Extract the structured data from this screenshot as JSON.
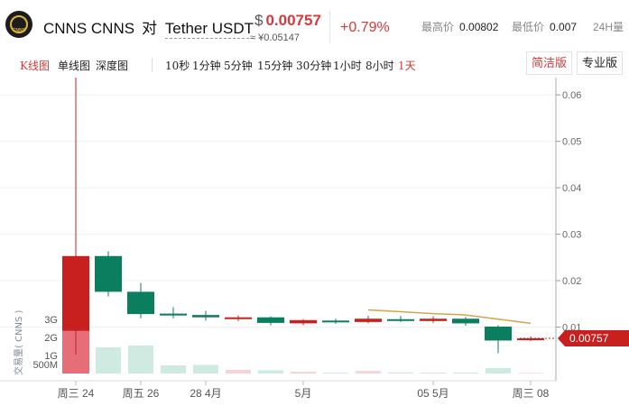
{
  "header": {
    "logo_text": "CNNS",
    "base_name": "CNNS CNNS",
    "dui": "对",
    "quote_name": "Tether USDT",
    "currency_symbol": "$",
    "price": "0.00757",
    "price_cny": "≈ ¥0.05147",
    "change": "+0.79%",
    "high_label": "最高价",
    "high_value": "0.00802",
    "low_label": "最低价",
    "low_value": "0.007",
    "period_label": "24H量",
    "up_color": "#d33a3a"
  },
  "tabs": {
    "chart_types": [
      "K线图",
      "单线图",
      "深度图"
    ],
    "intervals": [
      "10秒",
      "1分钟",
      "5分钟",
      "15分钟",
      "30分钟",
      "1小时",
      "8小时",
      "1天"
    ],
    "active_interval": "1天",
    "view_simple": "简洁版",
    "view_pro": "专业版"
  },
  "chart_data": {
    "type": "candlestick",
    "x_labels": [
      "周三 24",
      "周五 26",
      "28 4月",
      "5月",
      "05 5月",
      "周三 08"
    ],
    "y_ticks": [
      "0.06",
      "0.05",
      "0.04",
      "0.03",
      "0.02",
      "0.01"
    ],
    "ylim": [
      0.0,
      0.061
    ],
    "current_price": "0.00757",
    "volume_axis_label": "交易量( CNNS )",
    "volume_ticks": [
      "3G",
      "2G",
      "1G",
      "500M"
    ],
    "candles": [
      {
        "o": 0.0092,
        "h": 0.0525,
        "l": 0.0041,
        "c": 0.0253,
        "vol": 3.1
      },
      {
        "o": 0.0253,
        "h": 0.0263,
        "l": 0.0166,
        "c": 0.0176,
        "vol": 1.45
      },
      {
        "o": 0.0176,
        "h": 0.0195,
        "l": 0.0119,
        "c": 0.0128,
        "vol": 1.55
      },
      {
        "o": 0.0129,
        "h": 0.0143,
        "l": 0.0119,
        "c": 0.0125,
        "vol": 0.45
      },
      {
        "o": 0.0126,
        "h": 0.0135,
        "l": 0.0114,
        "c": 0.0121,
        "vol": 0.48
      },
      {
        "o": 0.0119,
        "h": 0.0125,
        "l": 0.0113,
        "c": 0.0121,
        "vol": 0.2
      },
      {
        "o": 0.0121,
        "h": 0.0123,
        "l": 0.0104,
        "c": 0.0109,
        "vol": 0.18
      },
      {
        "o": 0.0108,
        "h": 0.0117,
        "l": 0.0104,
        "c": 0.0115,
        "vol": 0.1
      },
      {
        "o": 0.0114,
        "h": 0.0118,
        "l": 0.0107,
        "c": 0.0111,
        "vol": 0.05
      },
      {
        "o": 0.0111,
        "h": 0.0124,
        "l": 0.0108,
        "c": 0.0118,
        "vol": 0.14
      },
      {
        "o": 0.0117,
        "h": 0.0124,
        "l": 0.0111,
        "c": 0.0115,
        "vol": 0.07
      },
      {
        "o": 0.0113,
        "h": 0.0123,
        "l": 0.0109,
        "c": 0.0118,
        "vol": 0.05
      },
      {
        "o": 0.0118,
        "h": 0.0122,
        "l": 0.0103,
        "c": 0.0108,
        "vol": 0.06
      },
      {
        "o": 0.0101,
        "h": 0.0104,
        "l": 0.0044,
        "c": 0.0071,
        "vol": 0.3
      },
      {
        "o": 0.0075,
        "h": 0.008,
        "l": 0.007,
        "c": 0.00757,
        "vol": 0.03
      }
    ],
    "ma_line": [
      null,
      null,
      null,
      null,
      null,
      null,
      null,
      null,
      null,
      0.0137,
      0.0133,
      0.0129,
      0.0126,
      0.0117,
      0.0108
    ],
    "colors": {
      "up": "#c8201e",
      "down": "#0b7e5f",
      "ma": "#d4a54a",
      "vol_up": "#e05561",
      "vol_down": "#cfeae1",
      "vol_up_light": "#f8d3d6"
    }
  }
}
